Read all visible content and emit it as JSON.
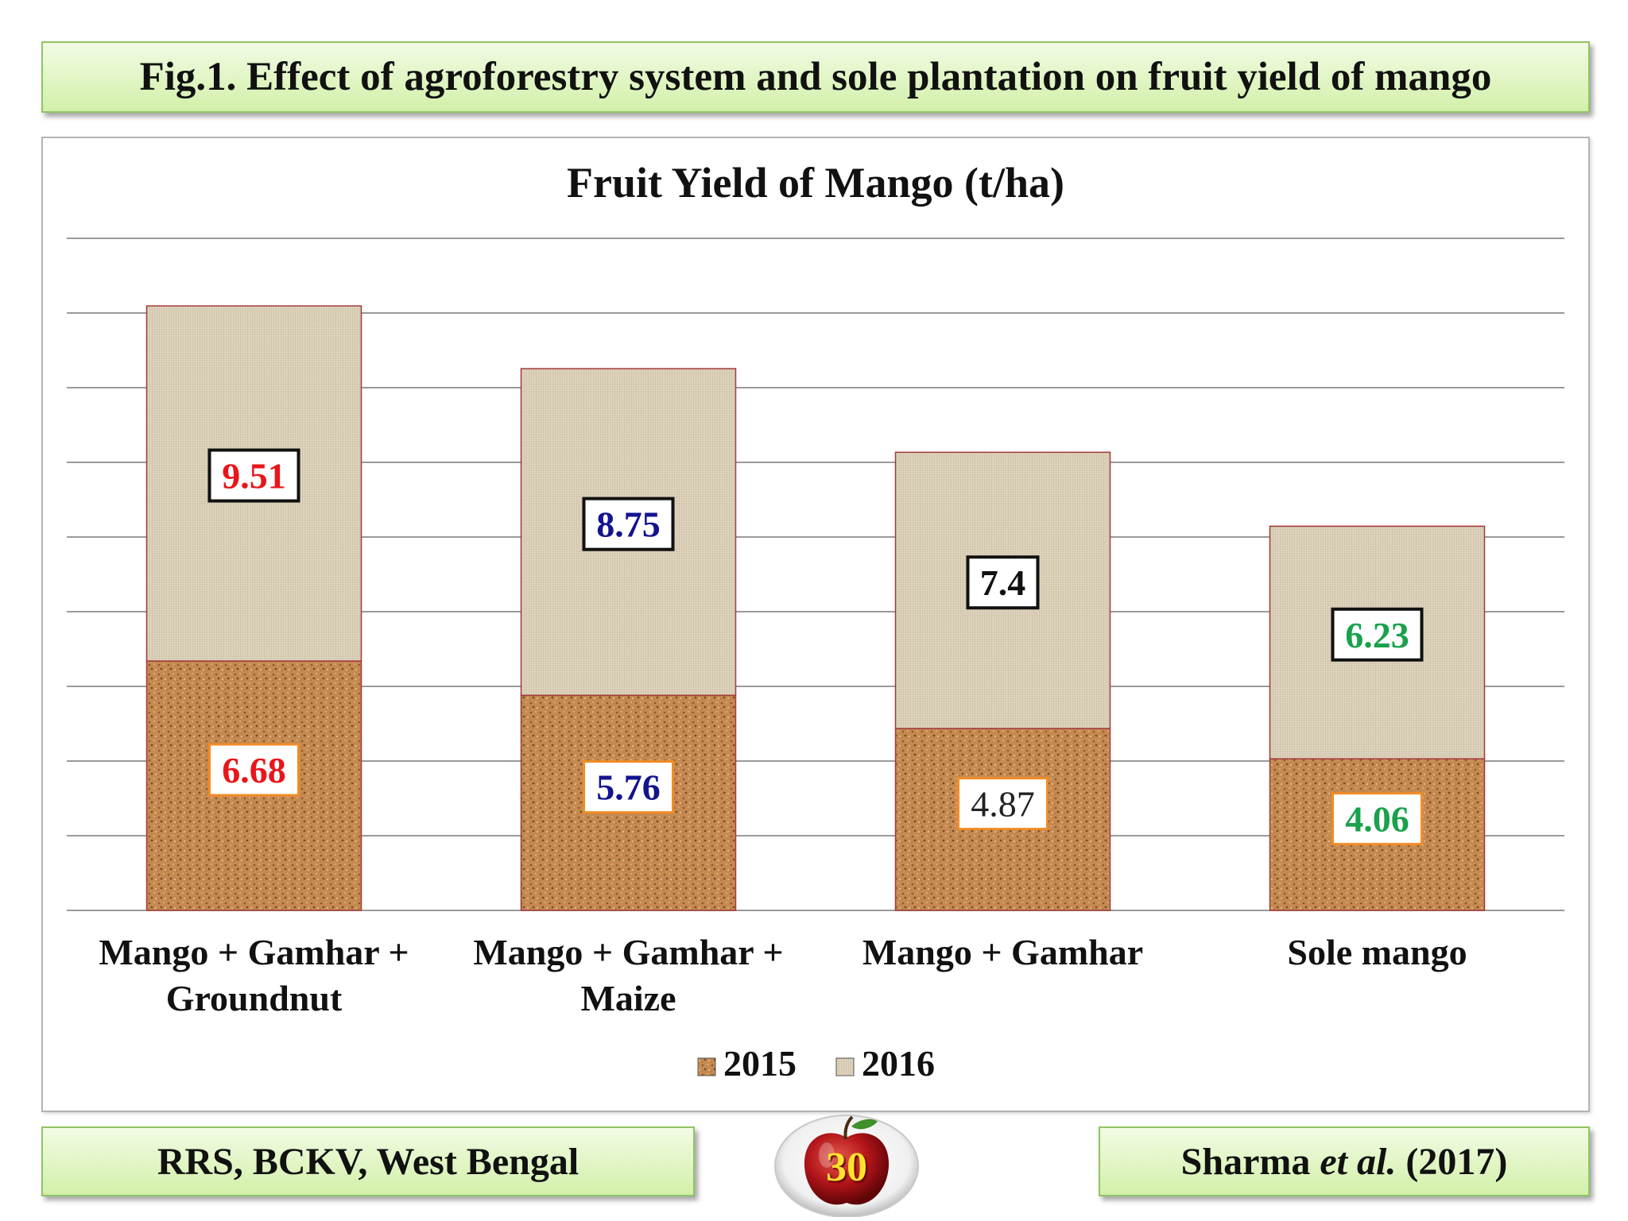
{
  "header": {
    "figure_title": "Fig.1. Effect of agroforestry system and sole plantation on fruit yield of mango"
  },
  "footer": {
    "left_text": "RRS, BCKV, West Bengal",
    "right_author": "Sharma",
    "right_etal": "et al.",
    "right_year": "(2017)",
    "page_number": "30"
  },
  "colors": {
    "series_2015_fill": "#c58a52",
    "series_2016_fill": "#d8ccb4",
    "bar_outline": "#a33a3a",
    "gridline": "#9a9a9a"
  },
  "chart_data": {
    "type": "bar",
    "stacked": true,
    "title": "Fruit Yield of Mango (t/ha)",
    "categories": [
      [
        "Mango + Gamhar +",
        "Groundnut"
      ],
      [
        "Mango + Gamhar +",
        "Maize"
      ],
      [
        "Mango + Gamhar"
      ],
      [
        "Sole mango"
      ]
    ],
    "series": [
      {
        "name": "2015",
        "values": [
          6.68,
          5.76,
          4.87,
          4.06
        ],
        "labels": [
          "6.68",
          "5.76",
          "4.87",
          "4.06"
        ],
        "label_colors": [
          "#e8161b",
          "#14148f",
          "#222222",
          "#1aa14c"
        ]
      },
      {
        "name": "2016",
        "values": [
          9.51,
          8.75,
          7.4,
          6.23
        ],
        "labels": [
          "9.51",
          "8.75",
          "7.4",
          "6.23"
        ],
        "label_colors": [
          "#e8161b",
          "#14148f",
          "#111111",
          "#1aa14c"
        ]
      }
    ],
    "ylim": [
      0,
      18
    ],
    "gridlines": true,
    "y_axis_labels_shown": false,
    "legend_position": "bottom"
  }
}
